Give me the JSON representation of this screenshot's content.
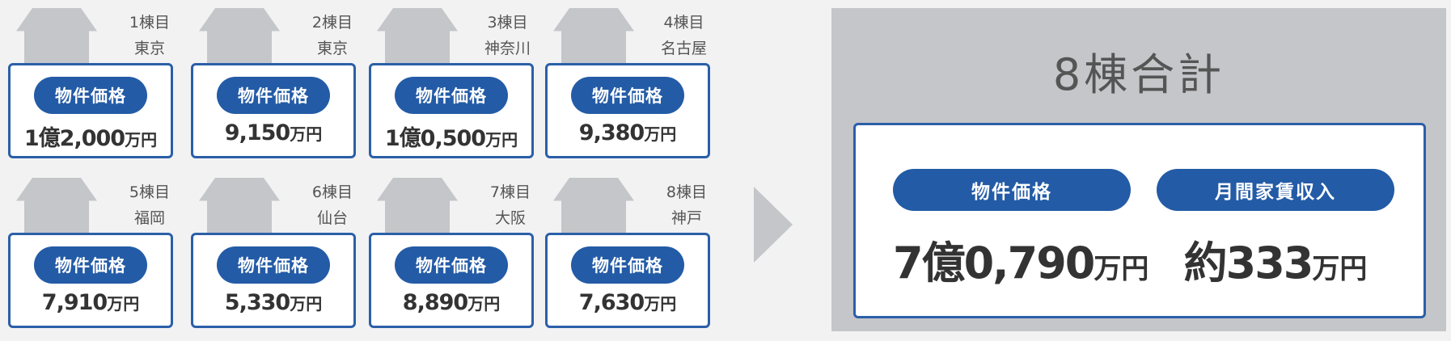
{
  "buildings": [
    {
      "ordinal": "1棟目",
      "city": "東京",
      "label": "物件価格",
      "price": "1億2,000",
      "unit": "万円"
    },
    {
      "ordinal": "2棟目",
      "city": "東京",
      "label": "物件価格",
      "price": "9,150",
      "unit": "万円"
    },
    {
      "ordinal": "3棟目",
      "city": "神奈川",
      "label": "物件価格",
      "price": "1億0,500",
      "unit": "万円"
    },
    {
      "ordinal": "4棟目",
      "city": "名古屋",
      "label": "物件価格",
      "price": "9,380",
      "unit": "万円"
    },
    {
      "ordinal": "5棟目",
      "city": "福岡",
      "label": "物件価格",
      "price": "7,910",
      "unit": "万円"
    },
    {
      "ordinal": "6棟目",
      "city": "仙台",
      "label": "物件価格",
      "price": "5,330",
      "unit": "万円"
    },
    {
      "ordinal": "7棟目",
      "city": "大阪",
      "label": "物件価格",
      "price": "8,890",
      "unit": "万円"
    },
    {
      "ordinal": "8棟目",
      "city": "神戸",
      "label": "物件価格",
      "price": "7,630",
      "unit": "万円"
    }
  ],
  "total": {
    "title": "8棟合計",
    "price_label": "物件価格",
    "price_value": "7億0,790",
    "price_unit": "万円",
    "rent_label": "月間家賃収入",
    "rent_value": "約333",
    "rent_unit": "万円"
  },
  "colors": {
    "accent": "#235ba6",
    "panel_gray": "#c4c6c9",
    "background": "#f2f2f2"
  }
}
